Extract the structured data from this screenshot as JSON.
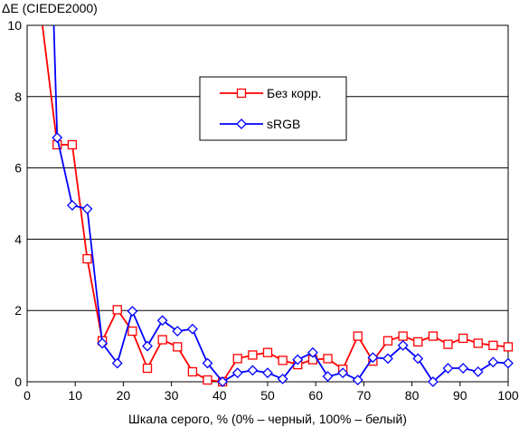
{
  "chart_data": {
    "type": "line",
    "title": "",
    "ylabel": "ΔE (CIEDE2000)",
    "xlabel": "Шкала серого, % (0% – черный, 100% – белый)",
    "xlim": [
      0,
      100
    ],
    "ylim": [
      0,
      10
    ],
    "xticks": [
      0,
      10,
      20,
      30,
      40,
      50,
      60,
      70,
      80,
      90,
      100
    ],
    "yticks": [
      0,
      2,
      4,
      6,
      8,
      10
    ],
    "grid": "horizontal",
    "legend_position": "upper-center",
    "series": [
      {
        "name": "Без корр.",
        "color": "#ff0000",
        "marker": "square",
        "x": [
          3,
          6.25,
          9.38,
          12.5,
          15.63,
          18.75,
          21.88,
          25,
          28.13,
          31.25,
          34.38,
          37.5,
          40.63,
          43.75,
          46.88,
          50,
          53.13,
          56.25,
          59.38,
          62.5,
          65.63,
          68.75,
          71.88,
          75,
          78.13,
          81.25,
          84.38,
          87.5,
          90.63,
          93.75,
          96.88,
          100
        ],
        "y": [
          10.2,
          6.65,
          6.65,
          3.45,
          1.15,
          2.02,
          1.42,
          0.38,
          1.18,
          0.98,
          0.28,
          0.05,
          0.0,
          0.65,
          0.75,
          0.82,
          0.6,
          0.48,
          0.62,
          0.65,
          0.35,
          1.28,
          0.58,
          1.15,
          1.28,
          1.12,
          1.28,
          1.05,
          1.22,
          1.08,
          1.02,
          0.98
        ]
      },
      {
        "name": "sRGB",
        "color": "#0000ff",
        "marker": "diamond",
        "x": [
          5.5,
          6.25,
          9.38,
          12.5,
          15.63,
          18.75,
          21.88,
          25,
          28.13,
          31.25,
          34.38,
          37.5,
          40.63,
          43.75,
          46.88,
          50,
          53.13,
          56.25,
          59.38,
          62.5,
          65.63,
          68.75,
          71.88,
          75,
          78.13,
          81.25,
          84.38,
          87.5,
          90.63,
          93.75,
          96.88,
          100
        ],
        "y": [
          10.2,
          6.85,
          4.95,
          4.85,
          1.08,
          0.52,
          1.98,
          1.0,
          1.72,
          1.42,
          1.48,
          0.52,
          0.0,
          0.25,
          0.32,
          0.25,
          0.08,
          0.62,
          0.82,
          0.15,
          0.25,
          0.05,
          0.68,
          0.65,
          1.02,
          0.65,
          0.0,
          0.38,
          0.38,
          0.28,
          0.55,
          0.52
        ]
      }
    ]
  }
}
